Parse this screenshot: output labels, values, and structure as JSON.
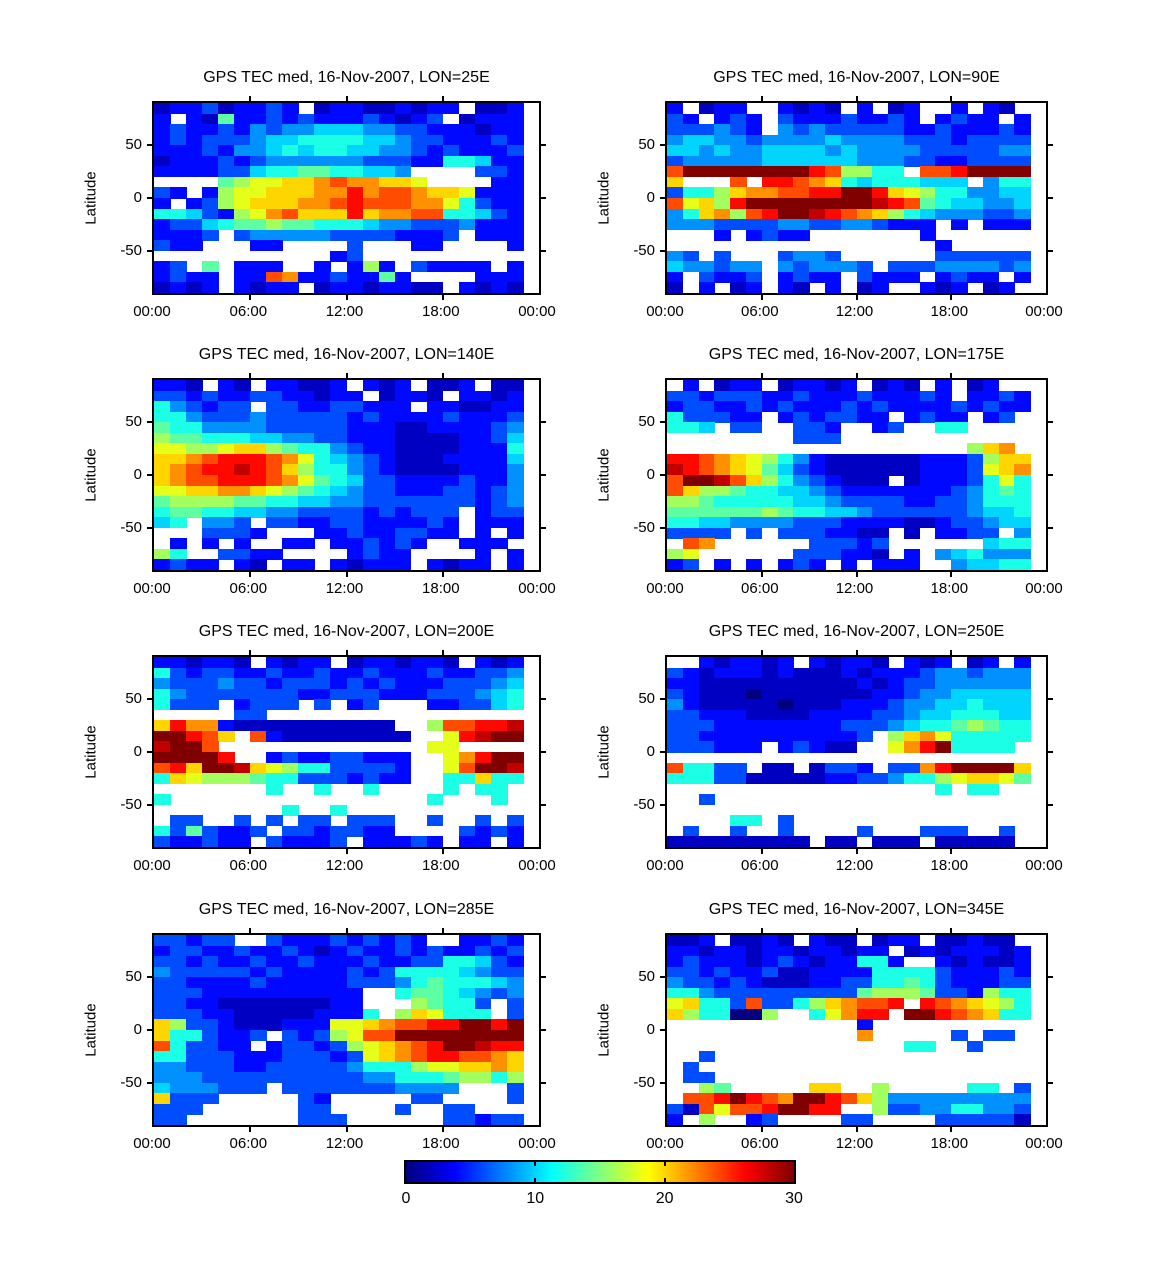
{
  "figure": {
    "background": "#ffffff",
    "text_color": "#000000"
  },
  "chart_data": {
    "type": "heatmap",
    "quantity": "GPS TEC med",
    "date": "16-Nov-2007",
    "ylabel": "Latitude",
    "x_ticks": [
      "00:00",
      "06:00",
      "12:00",
      "18:00",
      "00:00"
    ],
    "x_tick_hours": [
      0,
      6,
      12,
      18,
      24
    ],
    "y_ticks": [
      "50",
      "0",
      "-50"
    ],
    "y_tick_values": [
      50,
      0,
      -50
    ],
    "x_range_hours": [
      0,
      24
    ],
    "y_range_latitude": [
      -90,
      90
    ],
    "value_range": [
      0,
      30
    ],
    "colormap": "jet",
    "missing_char": ".",
    "cell_value_encoding": "each char is one cell: hex digit 0-f means TEC value = digit*2 (0..30 TECu); '.' means no data (white)",
    "grid_bins": {
      "cols": 23,
      "rows": 18,
      "hours_per_col": 1,
      "degrees_per_row": 10,
      "top_row_latitude": "90..80",
      "bottom_row_latitude": "-80..-90"
    },
    "colorbar": {
      "min": 0,
      "max": 30,
      "ticks": [
        "0",
        "10",
        "20",
        "30"
      ],
      "tick_values": [
        0,
        10,
        20,
        30
      ]
    },
    "panels": [
      {
        "lon": "25E",
        "title": "GPS TEC med, 16-Nov-2007, LON=25E",
        "grid": [
          "122312232.122112122.112",
          "2.2172232322232123.1222",
          "23223243445554433222122",
          "23233345566665543322232",
          "22232445656655443232223",
          "12223234444443332266522",
          "2222335667766554....332",
          "....7899aabcbbaa9....22",
          "32.2899aaabbdbccbaa9222",
          "2.2389aaabbcdcccbb96322",
          "6653289bcaaadabbcc66532",
          "23356778776665443334222",
          "2223.34444433332223.222",
          "322...22....3...22....2",
          "...........23..........",
          "23.7.222..2.282.32222.2",
          "2322.22cb2232272....222",
          "1212.2122.12212211.2121"
        ]
      },
      {
        "lon": "90E",
        "title": "GPS TEC med, 16-Nov-2007, LON=90E",
        "grid": [
          "2.122..2121.2.12..2.21.",
          "32.232.322232232.2322.2",
          "333432.4343333322322232",
          "45544344445444433323333",
          "55454455554544443333344",
          "34444455555544433223333",
          "cffffffffdc8866.ccdffff",
          "a...c.ddcba65666555.466",
          "3668abbccddffda98664455",
          "c9a8dffffffffedc7655445",
          "46ab8cdffedcba865444334",
          "44433334433443222.2.222",
          "...2.2322.......2......",
          ".................2.....",
          "43.3...3443......333333",
          "544344.434443.333444434",
          "2.3223.2322.3222.2322.2",
          "1.2.12.21.2.12..212.12."
        ]
      },
      {
        "lon": "140E",
        "title": "GPS TEC med, 16-Nov-2007, LON=140E",
        "grid": [
          "221.21.22112.212.112.11",
          "3323223322122.1221.2212",
          "643233.332233222.221122",
          "66433343333323222232223",
          "76644443333322211222234",
          "87766655443322211112235",
          "99889aa8766432211112226",
          "aabcdddcb96543211122225",
          "abcddedca86643211112224",
          "abccdddcb97653322223224",
          "99aabba9876543322233234",
          "78888776655443333333234",
          "6776655443333232333.233",
          "56.443.332233222232.222",
          "...3332...223223322.2.2",
          ".2.2.2..22.223232..222.",
          "86..3322....2322....2.2",
          "2322.21.22.21222.2122.2"
        ]
      },
      {
        "lon": "175E",
        "title": "GPS TEC med, 16-Nov-2007, LON=175E",
        "grid": [
          ".2.122.12212.121.2.12..",
          "332333223222322232.2232",
          "23322323222323222232322",
          "633322.2323322.2322.23.",
          "665.33..332..23..66....",
          "........333............",
          "...................8ab.",
          "ddcba9864211111122238aa",
          "edcba9753211111122239ab",
          "cffeca86432111.12223696",
          "ca887665543222222234676",
          "88766666554333322334666",
          "77777787665543333334556",
          "66554444333222211233455",
          "3333.3.3332211.1.2233.4",
          ".cb......33323......566",
          "89......333221.2.456444",
          "23.2.2.232.2.222..45566"
        ]
      },
      {
        "lon": "200E",
        "title": "GPS TEC med, 16-Nov-2007, LON=200E",
        "grid": [
          "221221.2122.1221221.212",
          "63233223223223222322334",
          "43334332333232322233345",
          "64333333322333222333456",
          "6333.2333.3.23...223356",
          ".....33................",
          "adbb21111111111..8ccdde",
          "ffdca.c211111111..9deff",
          "effc.............99....",
          "ffffd..232233222..9bdff",
          "cdaffea986633332..9cffe",
          "6a98887663332322..66a66",
          ".......6..6..6....6.66.",
          "6................6...6.",
          "........6..6...........",
          ".33..3.3.33.333..3..3.3",
          "6373223.3323322....3232",
          "322322.32223.22232.22.2"
        ]
      },
      {
        "lon": "250E",
        "title": "GPS TEC med, 16-Nov-2007, LON=250E",
        "grid": [
          "..212212.21221.212.12.2",
          "32122212111212223443444",
          "22111111111121233444444",
          "32111011111112234455555",
          "42111110111222344556555",
          "33222111122223345566655",
          "33322222222333456678766",
          "3322222222223.8ab966666",
          "333222.23211..9bdf6666.",
          ".......................",
          "c6633.11.1332.33bdffffa",
          "6663311111223346689aa97",
          ".................6.66..",
          "..3....................",
          ".......................",
          "....66.3...............",
          ".3..3..3....3...333..3.",
          "111111111.11.111.11111."
        ]
      },
      {
        "lon": "285E",
        "title": "GPS TEC med, 16-Nov-2007, LON=285E",
        "grid": [
          "33233..3222323232..2232",
          "23322322321232232322323",
          "33232232232223223366532",
          "43333323222232366665433",
          "33222232222233346766654",
          "3332222222222..67765434",
          "3322111111122...87663.3",
          "33322111112226.8a9666.3",
          "a833211122299abccddffdf",
          "a663223.32389ccffffffff",
          "c63322.2332389abcdffedd",
          "66333222333239abcddccba",
          "4433322333334666899aaba",
          "44433333333334466678868",
          "5444333.33333334444...3",
          "a333.....32.....33....3",
          "333......33....3..33...",
          "33.......333......33233"
        ]
      },
      {
        "lon": "345E",
        "title": "GPS TEC med, 16-Nov-2007, LON=345E",
        "grid": [
          "112.1121.211.122.11211.",
          "22122122122122.12122212",
          "232221232122662..212112",
          "33232231122226666322232",
          "43323211122336676322233",
          "66433333333378887332866",
          "9a663c3368abccd.dcba986",
          "a866008..69bdd.ffdcba66",
          "............2..........",
          "............b.....3.33.",
          "...............66..3...",
          "..3....................",
          ".3.....................",
          ".33....................",
          "..87.....aa..8.....66.3",
          ".ccdfdcbffdca8444444444",
          "31c9ccdffdd..8334466443",
          "2.8..23....33....333331"
        ]
      }
    ]
  }
}
